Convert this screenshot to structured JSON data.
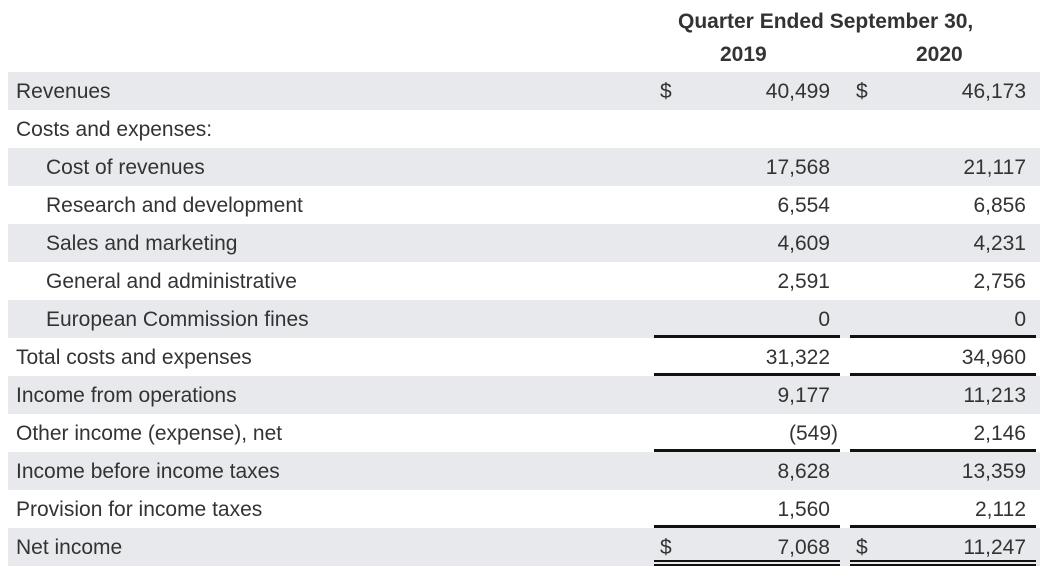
{
  "header": {
    "title": "Quarter Ended September 30,",
    "years": [
      "2019",
      "2020"
    ]
  },
  "rows": [
    {
      "label": "Revenues",
      "indent": false,
      "dollar": "$",
      "v2019": "40,499",
      "v2020": "46,173"
    },
    {
      "label": "Costs and expenses:",
      "indent": false
    },
    {
      "label": "Cost of revenues",
      "indent": true,
      "v2019": "17,568",
      "v2020": "21,117"
    },
    {
      "label": "Research and development",
      "indent": true,
      "v2019": "6,554",
      "v2020": "6,856"
    },
    {
      "label": "Sales and marketing",
      "indent": true,
      "v2019": "4,609",
      "v2020": "4,231"
    },
    {
      "label": "General and administrative",
      "indent": true,
      "v2019": "2,591",
      "v2020": "2,756"
    },
    {
      "label": "European Commission fines",
      "indent": true,
      "v2019": "0",
      "v2020": "0",
      "rule": "single"
    },
    {
      "label": "Total costs and expenses",
      "indent": false,
      "v2019": "31,322",
      "v2020": "34,960",
      "rule": "single"
    },
    {
      "label": "Income from operations",
      "indent": false,
      "v2019": "9,177",
      "v2020": "11,213"
    },
    {
      "label": "Other income (expense), net",
      "indent": false,
      "v2019": "(549)",
      "v2020": "2,146",
      "rule": "single"
    },
    {
      "label": "Income before income taxes",
      "indent": false,
      "v2019": "8,628",
      "v2020": "13,359"
    },
    {
      "label": "Provision for income taxes",
      "indent": false,
      "v2019": "1,560",
      "v2020": "2,112",
      "rule": "single"
    },
    {
      "label": "Net income",
      "indent": false,
      "dollar": "$",
      "v2019": "7,068",
      "v2020": "11,247",
      "rule": "double"
    }
  ]
}
